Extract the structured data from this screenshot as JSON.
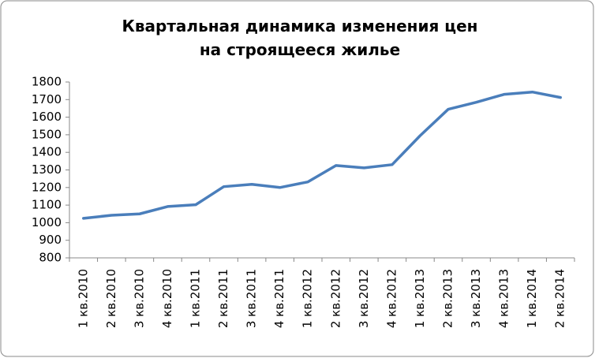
{
  "chart_data": {
    "type": "line",
    "title": "Квартальная динамика изменения цен на строящееся жилье",
    "categories": [
      "1 кв.2010",
      "2 кв.2010",
      "3 кв.2010",
      "4 кв.2010",
      "1 кв.2011",
      "2 кв.2011",
      "3 кв.2011",
      "4 кв.2011",
      "1 кв.2012",
      "2 кв.2012",
      "3 кв.2012",
      "4 кв.2012",
      "1 кв.2013",
      "2 кв.2013",
      "3 кв.2013",
      "4 кв.2013",
      "1 кв.2014",
      "2 кв.2014"
    ],
    "values": [
      1025,
      1042,
      1050,
      1092,
      1102,
      1205,
      1218,
      1200,
      1232,
      1325,
      1312,
      1330,
      1495,
      1645,
      1685,
      1730,
      1743,
      1712
    ],
    "color": "#4a7ebb",
    "ylim": [
      800,
      1800
    ],
    "yticks": [
      800,
      900,
      1000,
      1100,
      1200,
      1300,
      1400,
      1500,
      1600,
      1700,
      1800
    ],
    "grid": false
  }
}
